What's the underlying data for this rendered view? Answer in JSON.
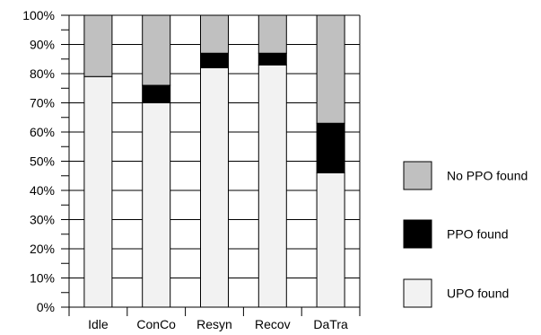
{
  "chart_data": {
    "type": "bar",
    "stacked": true,
    "categories": [
      "Idle",
      "ConCo",
      "Resyn",
      "Recov",
      "DaTra"
    ],
    "series": [
      {
        "name": "UPO found",
        "color": "#f2f2f2",
        "values": [
          79,
          70,
          82,
          83,
          46
        ]
      },
      {
        "name": "PPO found",
        "color": "#000000",
        "values": [
          0,
          6,
          5,
          4,
          17
        ]
      },
      {
        "name": "No PPO found",
        "color": "#c0c0c0",
        "values": [
          21,
          24,
          13,
          13,
          37
        ]
      }
    ],
    "ylim": [
      0,
      100
    ],
    "y_ticks": [
      "0%",
      "10%",
      "20%",
      "30%",
      "40%",
      "50%",
      "60%",
      "70%",
      "80%",
      "90%",
      "100%"
    ],
    "grid": true,
    "legend": {
      "placement": "right",
      "order": [
        "No PPO found",
        "PPO found",
        "UPO found"
      ]
    }
  }
}
